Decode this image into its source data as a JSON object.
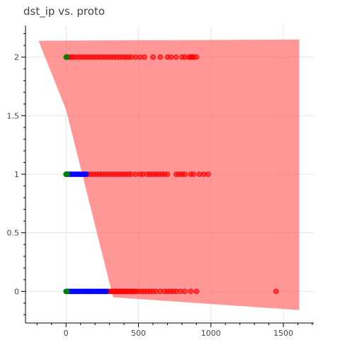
{
  "chart_data": {
    "type": "scatter",
    "title": "dst_ip vs. proto",
    "xlabel": "",
    "ylabel": "",
    "xlim": [
      -280,
      1710
    ],
    "ylim": [
      -0.27,
      2.27
    ],
    "grid": true,
    "x_ticks": [
      0,
      500,
      1000,
      1500
    ],
    "x_tick_labels": [
      "0",
      "500",
      "1000",
      "1500"
    ],
    "y_ticks": [
      0,
      0.5,
      1,
      1.5,
      2
    ],
    "y_tick_labels": [
      "0",
      "0.5",
      "1",
      "1.5",
      "2"
    ],
    "colors": {
      "red": "#ff0000",
      "blue": "#0000ff",
      "green": "#008000",
      "band": "#ff6b6b"
    },
    "band": {
      "color": "red",
      "opacity": 0.7,
      "points": [
        [
          -190,
          2.14
        ],
        [
          1610,
          2.15
        ],
        [
          1610,
          -0.16
        ],
        [
          325,
          -0.05
        ],
        [
          0,
          1.55
        ]
      ]
    },
    "series": [
      {
        "color": "red",
        "y": 2,
        "x": [
          2,
          10,
          20,
          35,
          50,
          70,
          90,
          110,
          130,
          150,
          170,
          190,
          210,
          230,
          250,
          270,
          290,
          310,
          330,
          350,
          370,
          390,
          410,
          430,
          450,
          480,
          510,
          540,
          600,
          650,
          700,
          725,
          760,
          800,
          820,
          850,
          870,
          900
        ],
        "x_extra": [
          860,
          880
        ]
      },
      {
        "color": "green",
        "y": 2,
        "x": [
          0,
          2,
          4,
          6
        ]
      },
      {
        "color": "red",
        "y": 1,
        "x": [
          150,
          170,
          190,
          210,
          230,
          250,
          270,
          290,
          310,
          330,
          350,
          370,
          390,
          410,
          430,
          450,
          480,
          510,
          530,
          560,
          580,
          600,
          620,
          640,
          660,
          680,
          700,
          760,
          780,
          800,
          820,
          860,
          880,
          920,
          950,
          980
        ],
        "x_extra": []
      },
      {
        "color": "blue",
        "y": 1,
        "x": [
          0,
          10,
          20,
          30,
          40,
          50,
          60,
          70,
          80,
          90,
          100,
          110,
          120,
          130,
          140
        ]
      },
      {
        "color": "green",
        "y": 1,
        "x": [
          0,
          2,
          4,
          6,
          8
        ]
      },
      {
        "color": "red",
        "y": 0,
        "x": [
          290,
          300,
          310,
          320,
          330,
          340,
          350,
          360,
          370,
          380,
          390,
          400,
          410,
          420,
          430,
          440,
          450,
          460,
          470,
          480,
          500,
          520,
          540,
          560,
          580,
          600,
          620,
          650,
          680,
          700,
          720,
          740,
          760,
          790,
          820,
          860,
          900
        ],
        "x_extra": [
          1450
        ]
      },
      {
        "color": "blue",
        "y": 0,
        "x": [
          0,
          10,
          20,
          30,
          40,
          50,
          60,
          70,
          80,
          90,
          100,
          110,
          120,
          130,
          140,
          150,
          160,
          170,
          180,
          190,
          200,
          210,
          220,
          230,
          240,
          250,
          260,
          270,
          280
        ]
      },
      {
        "color": "green",
        "y": 0,
        "x": [
          0,
          2,
          4,
          6
        ]
      }
    ]
  }
}
